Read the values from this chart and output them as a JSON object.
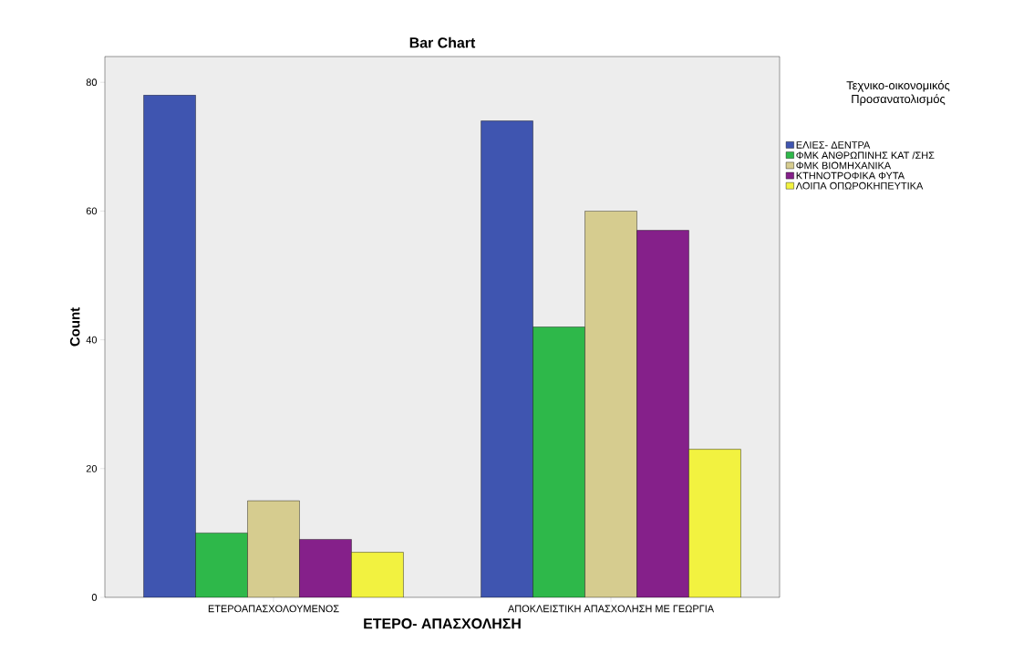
{
  "chart_data": {
    "type": "bar",
    "title": "Bar Chart",
    "xlabel": "ΕΤΕΡΟ- ΑΠΑΣΧΟΛΗΣΗ",
    "ylabel": "Count",
    "legend_title": "Τεχνικο-οικονομικός Προσανατολισμός",
    "categories": [
      "ΕΤΕΡΟΑΠΑΣΧΟΛΟΥΜΕΝΟΣ",
      "ΑΠΟΚΛΕΙΣΤΙΚΗ ΑΠΑΣΧΟΛΗΣΗ ΜΕ ΓΕΩΡΓΙΑ"
    ],
    "series": [
      {
        "name": "ΕΛΙΕΣ- ΔΕΝΤΡΑ",
        "color": "#3f55b0",
        "values": [
          78,
          74
        ]
      },
      {
        "name": "ΦΜΚ ΑΝΘΡΩΠΙΝΗΣ ΚΑΤ /ΣΗΣ",
        "color": "#2eb84a",
        "values": [
          10,
          42
        ]
      },
      {
        "name": "ΦΜΚ ΒΙΟΜΗΧΑΝΙΚΑ",
        "color": "#d6cc8f",
        "values": [
          15,
          60
        ]
      },
      {
        "name": "ΚΤΗΝΟΤΡΟΦΙΚΑ ΦΥΤΑ",
        "color": "#85208a",
        "values": [
          9,
          57
        ]
      },
      {
        "name": "ΛΟΙΠΑ ΟΠΩΡΟΚΗΠΕΥΤΙΚΑ",
        "color": "#f2f240",
        "values": [
          7,
          23
        ]
      }
    ],
    "ylim": [
      0,
      84
    ],
    "yticks": [
      0,
      20,
      40,
      60,
      80
    ],
    "grid": false,
    "legend": "right"
  }
}
